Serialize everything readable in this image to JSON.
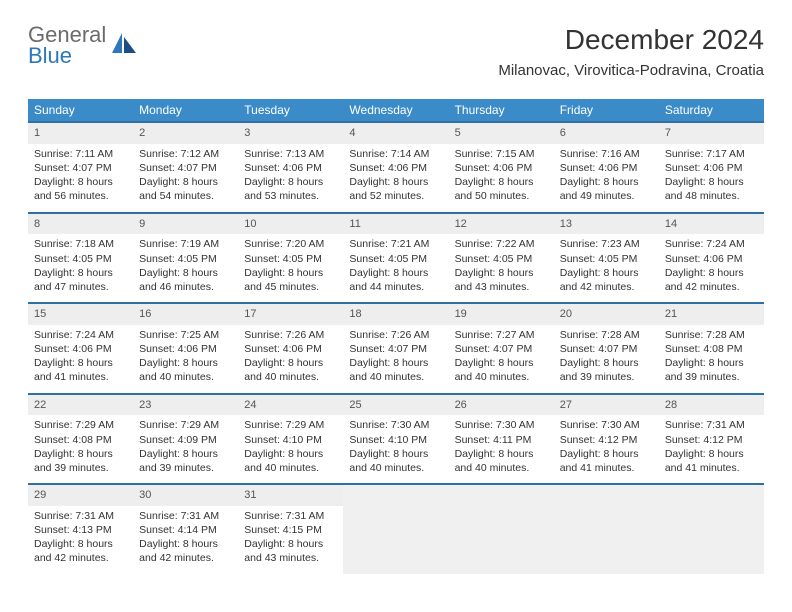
{
  "logo": {
    "textTop": "General",
    "textBottom": "Blue"
  },
  "title": "December 2024",
  "location": "Milanovac, Virovitica-Podravina, Croatia",
  "colors": {
    "headerBg": "#3b8bc9",
    "headerText": "#ffffff",
    "rowDivider": "#2f6fa3",
    "dayNumBg": "#eeeeee",
    "bodyText": "#333333",
    "logoGray": "#6b6b6b",
    "logoBlue": "#2f77bb",
    "emptyBg": "#f0f0f0"
  },
  "weekdays": [
    "Sunday",
    "Monday",
    "Tuesday",
    "Wednesday",
    "Thursday",
    "Friday",
    "Saturday"
  ],
  "days": [
    {
      "n": 1,
      "sr": "7:11 AM",
      "ss": "4:07 PM",
      "dl": "8 hours and 56 minutes."
    },
    {
      "n": 2,
      "sr": "7:12 AM",
      "ss": "4:07 PM",
      "dl": "8 hours and 54 minutes."
    },
    {
      "n": 3,
      "sr": "7:13 AM",
      "ss": "4:06 PM",
      "dl": "8 hours and 53 minutes."
    },
    {
      "n": 4,
      "sr": "7:14 AM",
      "ss": "4:06 PM",
      "dl": "8 hours and 52 minutes."
    },
    {
      "n": 5,
      "sr": "7:15 AM",
      "ss": "4:06 PM",
      "dl": "8 hours and 50 minutes."
    },
    {
      "n": 6,
      "sr": "7:16 AM",
      "ss": "4:06 PM",
      "dl": "8 hours and 49 minutes."
    },
    {
      "n": 7,
      "sr": "7:17 AM",
      "ss": "4:06 PM",
      "dl": "8 hours and 48 minutes."
    },
    {
      "n": 8,
      "sr": "7:18 AM",
      "ss": "4:05 PM",
      "dl": "8 hours and 47 minutes."
    },
    {
      "n": 9,
      "sr": "7:19 AM",
      "ss": "4:05 PM",
      "dl": "8 hours and 46 minutes."
    },
    {
      "n": 10,
      "sr": "7:20 AM",
      "ss": "4:05 PM",
      "dl": "8 hours and 45 minutes."
    },
    {
      "n": 11,
      "sr": "7:21 AM",
      "ss": "4:05 PM",
      "dl": "8 hours and 44 minutes."
    },
    {
      "n": 12,
      "sr": "7:22 AM",
      "ss": "4:05 PM",
      "dl": "8 hours and 43 minutes."
    },
    {
      "n": 13,
      "sr": "7:23 AM",
      "ss": "4:05 PM",
      "dl": "8 hours and 42 minutes."
    },
    {
      "n": 14,
      "sr": "7:24 AM",
      "ss": "4:06 PM",
      "dl": "8 hours and 42 minutes."
    },
    {
      "n": 15,
      "sr": "7:24 AM",
      "ss": "4:06 PM",
      "dl": "8 hours and 41 minutes."
    },
    {
      "n": 16,
      "sr": "7:25 AM",
      "ss": "4:06 PM",
      "dl": "8 hours and 40 minutes."
    },
    {
      "n": 17,
      "sr": "7:26 AM",
      "ss": "4:06 PM",
      "dl": "8 hours and 40 minutes."
    },
    {
      "n": 18,
      "sr": "7:26 AM",
      "ss": "4:07 PM",
      "dl": "8 hours and 40 minutes."
    },
    {
      "n": 19,
      "sr": "7:27 AM",
      "ss": "4:07 PM",
      "dl": "8 hours and 40 minutes."
    },
    {
      "n": 20,
      "sr": "7:28 AM",
      "ss": "4:07 PM",
      "dl": "8 hours and 39 minutes."
    },
    {
      "n": 21,
      "sr": "7:28 AM",
      "ss": "4:08 PM",
      "dl": "8 hours and 39 minutes."
    },
    {
      "n": 22,
      "sr": "7:29 AM",
      "ss": "4:08 PM",
      "dl": "8 hours and 39 minutes."
    },
    {
      "n": 23,
      "sr": "7:29 AM",
      "ss": "4:09 PM",
      "dl": "8 hours and 39 minutes."
    },
    {
      "n": 24,
      "sr": "7:29 AM",
      "ss": "4:10 PM",
      "dl": "8 hours and 40 minutes."
    },
    {
      "n": 25,
      "sr": "7:30 AM",
      "ss": "4:10 PM",
      "dl": "8 hours and 40 minutes."
    },
    {
      "n": 26,
      "sr": "7:30 AM",
      "ss": "4:11 PM",
      "dl": "8 hours and 40 minutes."
    },
    {
      "n": 27,
      "sr": "7:30 AM",
      "ss": "4:12 PM",
      "dl": "8 hours and 41 minutes."
    },
    {
      "n": 28,
      "sr": "7:31 AM",
      "ss": "4:12 PM",
      "dl": "8 hours and 41 minutes."
    },
    {
      "n": 29,
      "sr": "7:31 AM",
      "ss": "4:13 PM",
      "dl": "8 hours and 42 minutes."
    },
    {
      "n": 30,
      "sr": "7:31 AM",
      "ss": "4:14 PM",
      "dl": "8 hours and 42 minutes."
    },
    {
      "n": 31,
      "sr": "7:31 AM",
      "ss": "4:15 PM",
      "dl": "8 hours and 43 minutes."
    }
  ],
  "labels": {
    "sunrise": "Sunrise:",
    "sunset": "Sunset:",
    "daylight": "Daylight:"
  }
}
